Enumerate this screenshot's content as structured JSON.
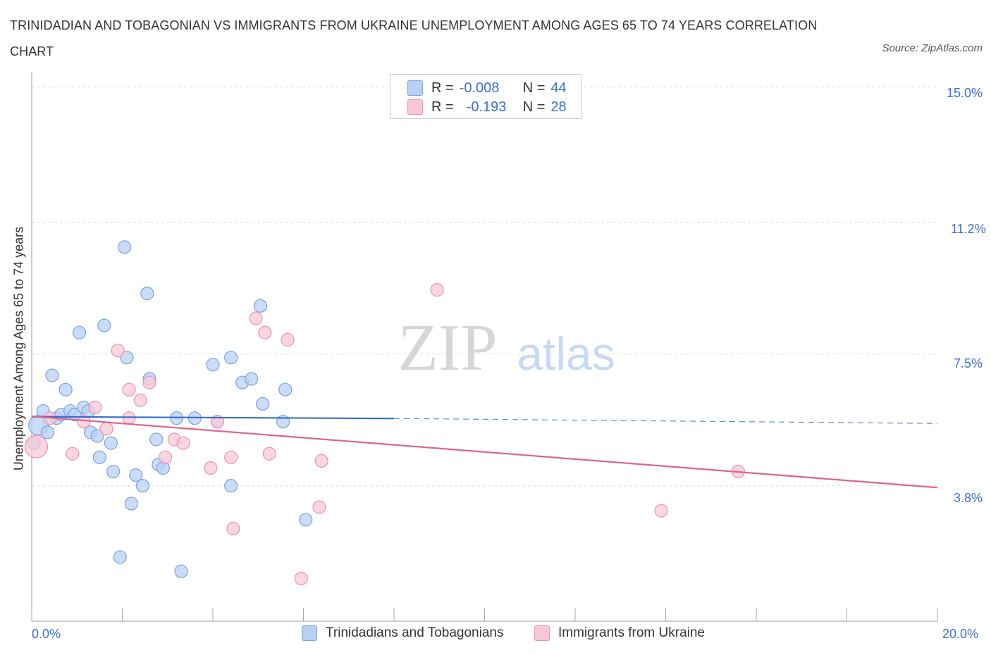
{
  "title": "TRINIDADIAN AND TOBAGONIAN VS IMMIGRANTS FROM UKRAINE UNEMPLOYMENT AMONG AGES 65 TO 74 YEARS CORRELATION CHART",
  "source": "Source: ZipAtlas.com",
  "watermark": {
    "zip": "ZIP",
    "atlas": "atlas"
  },
  "legend": {
    "r_label": "R =",
    "n_label": "N =",
    "rows": [
      {
        "r": "-0.008",
        "n": "44"
      },
      {
        "r": "-0.193",
        "n": "28"
      }
    ]
  },
  "bottom_legend": [
    "Trinidadians and Tobagonians",
    "Immigrants from Ukraine"
  ],
  "colors": {
    "blue_fill": "#b8d0f4",
    "blue_stroke": "#7aa3e0",
    "blue_line": "#2f6fd1",
    "pink_fill": "#f8c8d6",
    "pink_stroke": "#eb93b0",
    "pink_line": "#e0628e",
    "tick_blue": "#3a6fd8",
    "grid": "#dddddd"
  },
  "chart_data": {
    "type": "scatter",
    "title": "TRINIDADIAN AND TOBAGONIAN VS IMMIGRANTS FROM UKRAINE UNEMPLOYMENT AMONG AGES 65 TO 74 YEARS CORRELATION CHART",
    "xlabel": "",
    "ylabel": "Unemployment Among Ages 65 to 74 years",
    "xlim": [
      0,
      20
    ],
    "ylim": [
      0,
      15.4
    ],
    "x_tick_labels": [
      "0.0%",
      "20.0%"
    ],
    "y_ticks": [
      3.8,
      7.5,
      11.2,
      15.0
    ],
    "y_tick_labels": [
      "3.8%",
      "7.5%",
      "11.2%",
      "15.0%"
    ],
    "grid": true,
    "series": [
      {
        "name": "Trinidadians and Tobagonians",
        "R": -0.008,
        "N": 44,
        "trend": {
          "x": [
            0,
            8
          ],
          "y": [
            5.74,
            5.69
          ],
          "dashed_to": [
            20,
            5.55
          ]
        },
        "points": [
          [
            0.15,
            5.5,
            14
          ],
          [
            0.25,
            5.9,
            9
          ],
          [
            0.35,
            5.3,
            9
          ],
          [
            0.45,
            6.9,
            9
          ],
          [
            0.55,
            5.7,
            9
          ],
          [
            0.65,
            5.8,
            9
          ],
          [
            0.75,
            6.5,
            9
          ],
          [
            0.85,
            5.9,
            9
          ],
          [
            0.95,
            5.8,
            9
          ],
          [
            1.05,
            8.1,
            9
          ],
          [
            1.15,
            6.0,
            9
          ],
          [
            1.25,
            5.9,
            9
          ],
          [
            1.3,
            5.3,
            9
          ],
          [
            1.45,
            5.2,
            9
          ],
          [
            1.5,
            4.6,
            9
          ],
          [
            1.6,
            8.3,
            9
          ],
          [
            1.75,
            5.0,
            9
          ],
          [
            1.8,
            4.2,
            9
          ],
          [
            1.95,
            1.8,
            9
          ],
          [
            2.05,
            10.5,
            9
          ],
          [
            2.1,
            7.4,
            9
          ],
          [
            2.2,
            3.3,
            9
          ],
          [
            2.3,
            4.1,
            9
          ],
          [
            2.45,
            3.8,
            9
          ],
          [
            2.55,
            9.2,
            9
          ],
          [
            2.6,
            6.8,
            9
          ],
          [
            2.75,
            5.1,
            9
          ],
          [
            2.8,
            4.4,
            9
          ],
          [
            2.9,
            4.3,
            9
          ],
          [
            3.2,
            5.7,
            9
          ],
          [
            3.3,
            1.4,
            9
          ],
          [
            3.6,
            5.7,
            9
          ],
          [
            4.0,
            7.2,
            9
          ],
          [
            4.1,
            5.6,
            9
          ],
          [
            4.4,
            7.4,
            9
          ],
          [
            4.4,
            3.8,
            9
          ],
          [
            4.65,
            6.7,
            9
          ],
          [
            4.85,
            6.8,
            9
          ],
          [
            5.05,
            8.85,
            9
          ],
          [
            5.1,
            6.1,
            9
          ],
          [
            5.55,
            5.6,
            9
          ],
          [
            5.6,
            6.5,
            9
          ],
          [
            6.05,
            2.85,
            9
          ],
          [
            0.05,
            5.0,
            9
          ]
        ]
      },
      {
        "name": "Immigrants from Ukraine",
        "R": -0.193,
        "N": 28,
        "trend": {
          "x": [
            0,
            20
          ],
          "y": [
            5.75,
            3.75
          ]
        },
        "points": [
          [
            0.1,
            4.9,
            16
          ],
          [
            0.4,
            5.7,
            9
          ],
          [
            0.9,
            4.7,
            9
          ],
          [
            1.15,
            5.6,
            9
          ],
          [
            1.4,
            6.0,
            9
          ],
          [
            1.65,
            5.4,
            9
          ],
          [
            1.9,
            7.6,
            9
          ],
          [
            2.15,
            6.5,
            9
          ],
          [
            2.15,
            5.7,
            9
          ],
          [
            2.4,
            6.2,
            9
          ],
          [
            2.6,
            6.7,
            9
          ],
          [
            2.95,
            4.6,
            9
          ],
          [
            3.15,
            5.1,
            9
          ],
          [
            3.35,
            5.0,
            9
          ],
          [
            3.95,
            4.3,
            9
          ],
          [
            4.1,
            5.6,
            9
          ],
          [
            4.4,
            4.6,
            9
          ],
          [
            4.45,
            2.6,
            9
          ],
          [
            4.95,
            8.5,
            9
          ],
          [
            5.15,
            8.1,
            9
          ],
          [
            5.25,
            4.7,
            9
          ],
          [
            5.65,
            7.9,
            9
          ],
          [
            5.95,
            1.2,
            9
          ],
          [
            6.35,
            3.2,
            9
          ],
          [
            6.4,
            4.5,
            9
          ],
          [
            8.95,
            9.3,
            9
          ],
          [
            13.9,
            3.1,
            9
          ],
          [
            15.6,
            4.2,
            9
          ]
        ]
      }
    ]
  }
}
